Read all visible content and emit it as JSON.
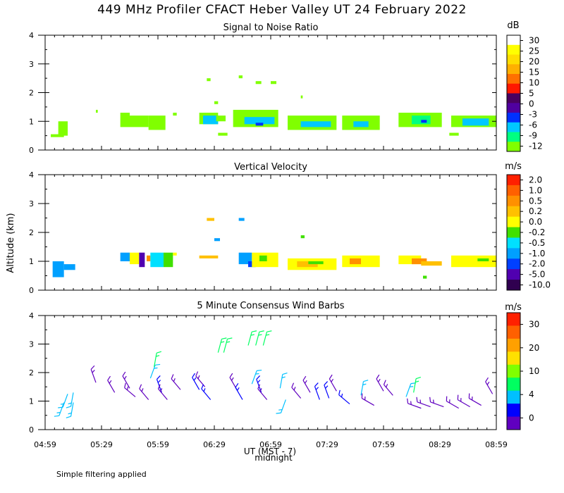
{
  "title": "449 MHz Profiler CFACT Heber Valley UT 24 February 2022",
  "footnote": "Simple filtering applied",
  "y_axis_label": "Altitude (km)",
  "x_axis_label": "UT (MST - 7)",
  "midnight_label": "midnight",
  "x_ticks": [
    "04:59",
    "05:29",
    "05:59",
    "06:29",
    "06:59",
    "07:29",
    "07:59",
    "08:29",
    "08:59"
  ],
  "y_ticks": [
    "0",
    "1",
    "2",
    "3",
    "4"
  ],
  "chart_data": [
    {
      "type": "heatmap",
      "title": "Signal to Noise Ratio",
      "units": "dB",
      "xlim": [
        0,
        240
      ],
      "ylim": [
        0,
        4
      ],
      "xlabel": "UT (MST - 7)",
      "ylabel": "Altitude (km)",
      "colorbar_labels": [
        "30",
        "25",
        "20",
        "15",
        "10",
        "5",
        "0",
        "-3",
        "-6",
        "-9",
        "-12"
      ],
      "colorbar_colors": [
        "#ffffff",
        "#ffff00",
        "#ffdd00",
        "#ffb000",
        "#ff7000",
        "#ff1800",
        "#4a0060",
        "#5000a0",
        "#0030ff",
        "#00c8ff",
        "#00ff80",
        "#80ff00"
      ],
      "cells": [
        [
          3,
          10,
          0.45,
          0.55,
          "#80ff00"
        ],
        [
          7,
          12,
          0.5,
          1.0,
          "#80ff00"
        ],
        [
          40,
          45,
          0.8,
          1.3,
          "#80ff00"
        ],
        [
          45,
          55,
          0.8,
          1.2,
          "#80ff00"
        ],
        [
          55,
          64,
          0.7,
          1.2,
          "#80ff00"
        ],
        [
          68,
          70,
          1.2,
          1.3,
          "#80ff00"
        ],
        [
          82,
          92,
          0.9,
          1.3,
          "#80ff00"
        ],
        [
          84,
          92,
          0.9,
          1.2,
          "#00c8ff"
        ],
        [
          92,
          97,
          0.5,
          0.6,
          "#80ff00"
        ],
        [
          91,
          96,
          1.0,
          1.2,
          "#80ff00"
        ],
        [
          100,
          124,
          0.8,
          1.4,
          "#80ff00"
        ],
        [
          106,
          122,
          0.9,
          1.15,
          "#00c8ff"
        ],
        [
          112,
          116,
          0.85,
          0.95,
          "#0030ff"
        ],
        [
          129,
          155,
          0.7,
          1.2,
          "#80ff00"
        ],
        [
          136,
          152,
          0.8,
          1.0,
          "#00c8ff"
        ],
        [
          158,
          178,
          0.7,
          1.2,
          "#80ff00"
        ],
        [
          164,
          172,
          0.8,
          1.0,
          "#00c8ff"
        ],
        [
          188,
          211,
          0.8,
          1.3,
          "#80ff00"
        ],
        [
          195,
          205,
          0.9,
          1.2,
          "#00ff80"
        ],
        [
          200,
          203,
          0.95,
          1.05,
          "#0030ff"
        ],
        [
          216,
          240,
          0.8,
          1.2,
          "#80ff00"
        ],
        [
          222,
          236,
          0.85,
          1.1,
          "#00c8ff"
        ],
        [
          215,
          220,
          0.5,
          0.6,
          "#80ff00"
        ],
        [
          86,
          88,
          2.4,
          2.5,
          "#80ff00"
        ],
        [
          90,
          92,
          1.6,
          1.7,
          "#80ff00"
        ],
        [
          103,
          105,
          2.5,
          2.6,
          "#80ff00"
        ],
        [
          112,
          115,
          2.3,
          2.4,
          "#80ff00"
        ],
        [
          120,
          123,
          2.3,
          2.4,
          "#80ff00"
        ],
        [
          136,
          137,
          1.8,
          1.9,
          "#80ff00"
        ],
        [
          27,
          28,
          1.3,
          1.4,
          "#80ff00"
        ]
      ]
    },
    {
      "type": "heatmap",
      "title": "Vertical Velocity",
      "units": "m/s",
      "xlim": [
        0,
        240
      ],
      "ylim": [
        0,
        4
      ],
      "xlabel": "UT (MST - 7)",
      "ylabel": "Altitude (km)",
      "colorbar_labels": [
        "2.0",
        "1.0",
        "0.5",
        "0.2",
        "0.0",
        "-0.2",
        "-0.5",
        "-1.0",
        "-2.0",
        "-5.0",
        "-10.0"
      ],
      "colorbar_colors": [
        "#ff2000",
        "#ff6000",
        "#ff9000",
        "#ffc000",
        "#ffff00",
        "#40e000",
        "#00e0ff",
        "#00a0ff",
        "#0040ff",
        "#5000b0",
        "#300050"
      ],
      "cells": [
        [
          4,
          10,
          0.45,
          1.0,
          "#00a0ff"
        ],
        [
          10,
          16,
          0.7,
          0.9,
          "#00a0ff"
        ],
        [
          40,
          45,
          1.0,
          1.3,
          "#00a0ff"
        ],
        [
          45,
          50,
          0.9,
          1.3,
          "#ffff00"
        ],
        [
          50,
          53,
          0.8,
          1.3,
          "#5000b0"
        ],
        [
          54,
          56,
          1.0,
          1.2,
          "#ff9000"
        ],
        [
          56,
          63,
          0.8,
          1.3,
          "#00e0ff"
        ],
        [
          63,
          68,
          0.8,
          1.3,
          "#40e000"
        ],
        [
          68,
          70,
          1.2,
          1.3,
          "#ffff00"
        ],
        [
          82,
          92,
          1.1,
          1.2,
          "#ffc000"
        ],
        [
          103,
          110,
          0.9,
          1.3,
          "#00a0ff"
        ],
        [
          108,
          112,
          0.8,
          1.0,
          "#0040ff"
        ],
        [
          110,
          124,
          0.8,
          1.3,
          "#ffff00"
        ],
        [
          114,
          118,
          1.0,
          1.2,
          "#40e000"
        ],
        [
          129,
          155,
          0.7,
          1.1,
          "#ffff00"
        ],
        [
          134,
          145,
          0.8,
          1.0,
          "#ffc000"
        ],
        [
          140,
          148,
          0.9,
          1.0,
          "#40e000"
        ],
        [
          158,
          178,
          0.8,
          1.2,
          "#ffff00"
        ],
        [
          162,
          168,
          0.9,
          1.1,
          "#ff9000"
        ],
        [
          188,
          200,
          0.9,
          1.2,
          "#ffff00"
        ],
        [
          195,
          203,
          0.9,
          1.1,
          "#ff9000"
        ],
        [
          200,
          211,
          0.85,
          1.0,
          "#ffc000"
        ],
        [
          216,
          240,
          0.8,
          1.2,
          "#ffff00"
        ],
        [
          230,
          236,
          1.0,
          1.1,
          "#40e000"
        ],
        [
          201,
          203,
          0.4,
          0.5,
          "#40e000"
        ],
        [
          86,
          90,
          2.4,
          2.5,
          "#ffc000"
        ],
        [
          90,
          93,
          1.7,
          1.8,
          "#00a0ff"
        ],
        [
          103,
          106,
          2.4,
          2.5,
          "#00a0ff"
        ],
        [
          136,
          138,
          1.8,
          1.9,
          "#40e000"
        ]
      ]
    },
    {
      "type": "scatter",
      "title": "5 Minute Consensus Wind Barbs",
      "units": "m/s",
      "xlim": [
        0,
        240
      ],
      "ylim": [
        0,
        4
      ],
      "xlabel": "UT (MST - 7)",
      "ylabel": "Altitude (km)",
      "colorbar_labels": [
        "30",
        "20",
        "10",
        "4",
        "0"
      ],
      "colorbar_colors": [
        "#ff2000",
        "#ff6000",
        "#ffa000",
        "#ffe000",
        "#80ff00",
        "#00ff60",
        "#00c0ff",
        "#0000ff",
        "#6000c0"
      ],
      "barbs": [
        [
          10,
          0.95,
          "#00c0ff",
          200
        ],
        [
          12,
          1.25,
          "#00c0ff",
          200
        ],
        [
          15,
          0.95,
          "#00c0ff",
          190
        ],
        [
          15,
          1.3,
          "#00c0ff",
          190
        ],
        [
          27,
          1.65,
          "#6000c0",
          340
        ],
        [
          37,
          1.3,
          "#6000c0",
          330
        ],
        [
          45,
          1.45,
          "#6000c0",
          330
        ],
        [
          48,
          1.15,
          "#6000c0",
          310
        ],
        [
          55,
          1.05,
          "#6000c0",
          320
        ],
        [
          56,
          1.8,
          "#00c0ff",
          20
        ],
        [
          58,
          2.2,
          "#00ff60",
          10
        ],
        [
          62,
          1.3,
          "#0000ff",
          340
        ],
        [
          65,
          1.05,
          "#6000c0",
          320
        ],
        [
          72,
          1.4,
          "#6000c0",
          320
        ],
        [
          82,
          1.4,
          "#0000ff",
          330
        ],
        [
          85,
          1.5,
          "#6000c0",
          320
        ],
        [
          88,
          1.05,
          "#0000ff",
          320
        ],
        [
          92,
          2.7,
          "#00ff60",
          15
        ],
        [
          95,
          2.7,
          "#00ff60",
          15
        ],
        [
          102,
          1.4,
          "#6000c0",
          330
        ],
        [
          105,
          1.05,
          "#0000ff",
          330
        ],
        [
          108,
          2.95,
          "#00ff60",
          15
        ],
        [
          112,
          2.95,
          "#00ff60",
          15
        ],
        [
          116,
          2.95,
          "#00ff60",
          15
        ],
        [
          110,
          1.6,
          "#00c0ff",
          20
        ],
        [
          115,
          1.3,
          "#0000ff",
          340
        ],
        [
          118,
          1.05,
          "#6000c0",
          320
        ],
        [
          125,
          1.45,
          "#00c0ff",
          10
        ],
        [
          128,
          1.05,
          "#00c0ff",
          200
        ],
        [
          136,
          1.1,
          "#6000c0",
          320
        ],
        [
          141,
          1.3,
          "#6000c0",
          330
        ],
        [
          146,
          1.05,
          "#0000ff",
          340
        ],
        [
          151,
          1.1,
          "#0000ff",
          340
        ],
        [
          155,
          1.35,
          "#6000c0",
          330
        ],
        [
          162,
          0.9,
          "#0000ff",
          310
        ],
        [
          168,
          1.2,
          "#00c0ff",
          10
        ],
        [
          175,
          0.85,
          "#6000c0",
          300
        ],
        [
          180,
          1.35,
          "#6000c0",
          330
        ],
        [
          185,
          1.2,
          "#6000c0",
          320
        ],
        [
          192,
          1.15,
          "#00c0ff",
          20
        ],
        [
          196,
          1.3,
          "#00ff60",
          10
        ],
        [
          200,
          0.75,
          "#6000c0",
          290
        ],
        [
          205,
          0.8,
          "#6000c0",
          290
        ],
        [
          212,
          0.8,
          "#6000c0",
          290
        ],
        [
          220,
          0.75,
          "#6000c0",
          300
        ],
        [
          226,
          0.8,
          "#6000c0",
          300
        ],
        [
          232,
          0.85,
          "#6000c0",
          300
        ],
        [
          238,
          1.25,
          "#6000c0",
          330
        ]
      ]
    }
  ]
}
